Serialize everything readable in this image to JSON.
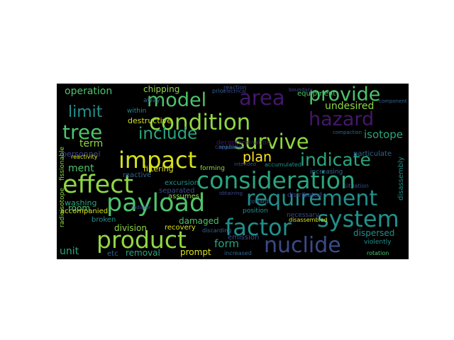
{
  "palette": {
    "purple": "#45176a",
    "indigo": "#3b4a8a",
    "blue": "#32658e",
    "teal": "#21908c",
    "sea": "#2aa57e",
    "green": "#4ec36b",
    "lime": "#8fd744",
    "yellow": "#d8e219",
    "bright": "#fde725"
  },
  "words": [
    {
      "text": "condition"
    },
    {
      "text": "hazard"
    },
    {
      "text": "model"
    },
    {
      "text": "area"
    },
    {
      "text": "provide"
    },
    {
      "text": "tree"
    },
    {
      "text": "include"
    },
    {
      "text": "survive"
    },
    {
      "text": "impact"
    },
    {
      "text": "indicate"
    },
    {
      "text": "consideration"
    },
    {
      "text": "effect"
    },
    {
      "text": "requirement"
    },
    {
      "text": "payload"
    },
    {
      "text": "factor"
    },
    {
      "text": "system"
    },
    {
      "text": "product"
    },
    {
      "text": "nuclide"
    },
    {
      "text": "limit"
    },
    {
      "text": "operation"
    },
    {
      "text": "isotope"
    },
    {
      "text": "undesired"
    },
    {
      "text": "plan"
    },
    {
      "text": "term"
    },
    {
      "text": "ment"
    },
    {
      "text": "chipping"
    },
    {
      "text": "destructive"
    },
    {
      "text": "filtering"
    },
    {
      "text": "personnel"
    },
    {
      "text": "assumes"
    },
    {
      "text": "reactive"
    },
    {
      "text": "excursion"
    },
    {
      "text": "separated"
    },
    {
      "text": "damaged"
    },
    {
      "text": "room"
    },
    {
      "text": "washing"
    },
    {
      "text": "accompanied"
    },
    {
      "text": "broken"
    },
    {
      "text": "division"
    },
    {
      "text": "recovery"
    },
    {
      "text": "unit"
    },
    {
      "text": "etc"
    },
    {
      "text": "removal"
    },
    {
      "text": "prompt"
    },
    {
      "text": "form"
    },
    {
      "text": "emission"
    },
    {
      "text": "dispersed"
    },
    {
      "text": "disassembled"
    },
    {
      "text": "disassembly"
    },
    {
      "text": "equipment"
    },
    {
      "text": "decontamination"
    },
    {
      "text": "particulate"
    },
    {
      "text": "position"
    },
    {
      "text": "increasing"
    },
    {
      "text": "rotation"
    },
    {
      "text": "forming"
    },
    {
      "text": "toward"
    },
    {
      "text": "capable"
    },
    {
      "text": "regulation"
    },
    {
      "text": "within"
    },
    {
      "text": "away"
    },
    {
      "text": "fissionable"
    },
    {
      "text": "reactivity"
    },
    {
      "text": "radiator"
    },
    {
      "text": "increased"
    },
    {
      "text": "violently"
    },
    {
      "text": "compaction"
    },
    {
      "text": "necessary"
    },
    {
      "text": "accumulated"
    },
    {
      "text": "distributed"
    },
    {
      "text": "obtaining"
    },
    {
      "text": "discarding"
    },
    {
      "text": "radioisotope"
    },
    {
      "text": "component"
    },
    {
      "text": "situation"
    },
    {
      "text": "prior"
    },
    {
      "text": "electrical"
    },
    {
      "text": "boundary"
    },
    {
      "text": "reaction"
    },
    {
      "text": "intended"
    }
  ]
}
